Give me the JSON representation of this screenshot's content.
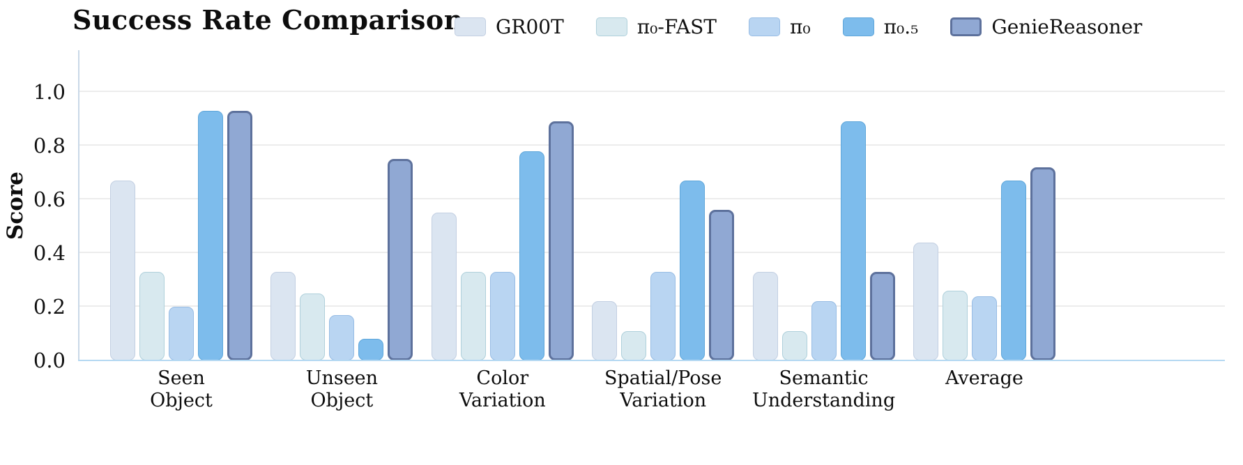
{
  "chart_data": {
    "type": "bar",
    "title": "Success Rate Comparison",
    "xlabel": "",
    "ylabel": "Score",
    "ylim": [
      0,
      1.08
    ],
    "yticks": [
      0.0,
      0.2,
      0.4,
      0.6,
      0.8,
      1.0
    ],
    "grid": true,
    "legend_position": "top",
    "categories": [
      "Seen\nObject",
      "Unseen\nObject",
      "Color\nVariation",
      "Spatial/Pose\nVariation",
      "Semantic\nUnderstanding",
      "Average"
    ],
    "series": [
      {
        "name": "GR00T",
        "values": [
          0.67,
          0.33,
          0.55,
          0.22,
          0.33,
          0.44
        ],
        "fill": "#dbe5f1",
        "border": "#c2cfe2",
        "border_width": 1.5
      },
      {
        "name": "π₀-FAST",
        "values": [
          0.33,
          0.25,
          0.33,
          0.11,
          0.11,
          0.26
        ],
        "fill": "#d8e9ef",
        "border": "#afd0db",
        "border_width": 1.5
      },
      {
        "name": "π₀",
        "values": [
          0.2,
          0.17,
          0.33,
          0.33,
          0.22,
          0.24
        ],
        "fill": "#b9d5f2",
        "border": "#97bce4",
        "border_width": 1.5
      },
      {
        "name": "π₀.₅",
        "values": [
          0.93,
          0.08,
          0.78,
          0.67,
          0.89,
          0.67
        ],
        "fill": "#7dbcec",
        "border": "#5ea6da",
        "border_width": 1.5
      },
      {
        "name": "GenieReasoner",
        "values": [
          0.93,
          0.75,
          0.89,
          0.56,
          0.33,
          0.72
        ],
        "fill": "#90a8d3",
        "border": "#5d719c",
        "border_width": 3
      }
    ]
  }
}
